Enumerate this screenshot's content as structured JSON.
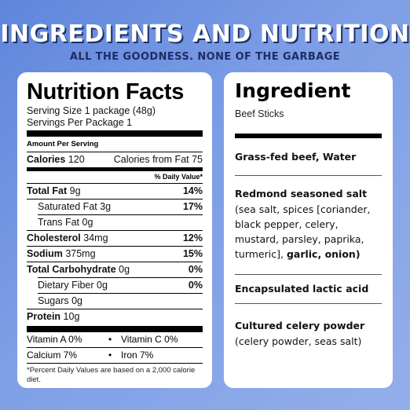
{
  "header": {
    "title": "INGREDIENTS AND NUTRITION",
    "subtitle": "ALL THE GOODNESS. NONE OF THE GARBAGE"
  },
  "nutrition": {
    "title": "Nutrition Facts",
    "serving_size": "Serving Size 1 package (48g)",
    "servings_per": "Servings Per Package 1",
    "amount_per_serving": "Amount Per Serving",
    "calories_label": "Calories",
    "calories_value": "120",
    "calories_fat": "Calories from Fat 75",
    "dv_header": "% Daily Value*",
    "rows": [
      {
        "label": "Total Fat",
        "amount": "9g",
        "dv": "14%"
      },
      {
        "label": "Saturated Fat",
        "amount": "3g",
        "dv": "17%"
      },
      {
        "label": "Trans Fat",
        "amount": "0g",
        "dv": ""
      },
      {
        "label": "Cholesterol",
        "amount": "34mg",
        "dv": "12%"
      },
      {
        "label": "Sodium",
        "amount": "375mg",
        "dv": "15%"
      },
      {
        "label": "Total Carbohydrate",
        "amount": "0g",
        "dv": "0%"
      },
      {
        "label": "Dietary Fiber",
        "amount": "0g",
        "dv": "0%"
      },
      {
        "label": "Sugars",
        "amount": "0g",
        "dv": ""
      },
      {
        "label": "Protein",
        "amount": "10g",
        "dv": ""
      }
    ],
    "vitamins": [
      {
        "a": "Vitamin A 0%",
        "b": "Vitamin C 0%"
      },
      {
        "a": "Calcium 7%",
        "b": "Iron  7%"
      }
    ],
    "bullet": "•",
    "footnote": "*Percent Daily Values are based on a 2,000 calorie diet."
  },
  "ingredients": {
    "title": "Ingredient",
    "product": "Beef Sticks",
    "sections": [
      {
        "bold": "Grass-fed beef, Water"
      },
      {
        "bold": "Redmond seasoned salt",
        "text": "(sea salt, spices [coriander, black pepper, celery, mustard, parsley, paprika, turmeric],",
        "text_bold": "garlic, onion)"
      },
      {
        "bold": "Encapsulated lactic acid"
      },
      {
        "bold": "Cultured celery powder",
        "text": "(celery powder, seas salt)"
      }
    ]
  }
}
